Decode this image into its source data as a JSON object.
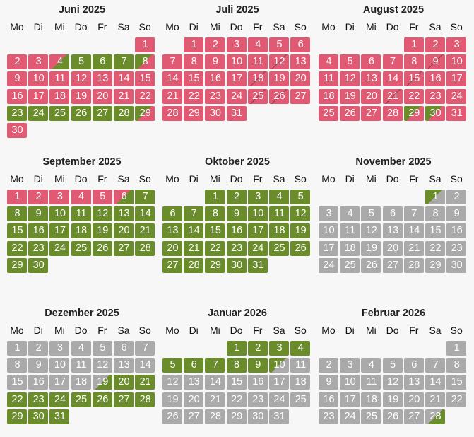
{
  "weekdays": [
    "Mo",
    "Di",
    "Mi",
    "Do",
    "Fr",
    "Sa",
    "So"
  ],
  "months": [
    {
      "title": "Juni 2025",
      "offset": 6,
      "status": [
        "r",
        "r",
        "r",
        "rg",
        "g",
        "g",
        "g",
        "gr",
        "r",
        "r",
        "r",
        "r",
        "r",
        "r",
        "r",
        "r",
        "r",
        "r",
        "r",
        "r",
        "r",
        "r",
        "g",
        "g",
        "g",
        "g",
        "g",
        "g",
        "gr",
        "r"
      ]
    },
    {
      "title": "Juli 2025",
      "offset": 1,
      "status": [
        "r",
        "r",
        "r",
        "r",
        "r",
        "r",
        "r",
        "r",
        "r",
        "r",
        "r",
        "rr",
        "r",
        "r",
        "r",
        "r",
        "r",
        "rr",
        "r",
        "r",
        "r",
        "r",
        "r",
        "r",
        "rr",
        "rr",
        "r",
        "r",
        "r",
        "r",
        "r"
      ]
    },
    {
      "title": "August 2025",
      "offset": 4,
      "status": [
        "r",
        "r",
        "r",
        "r",
        "r",
        "r",
        "r",
        "r",
        "rr",
        "r",
        "r",
        "r",
        "r",
        "r",
        "rr",
        "r",
        "r",
        "r",
        "r",
        "r",
        "rr",
        "r",
        "r",
        "r",
        "r",
        "r",
        "r",
        "r",
        "gr",
        "gr",
        "r"
      ]
    },
    {
      "title": "September 2025",
      "offset": 0,
      "status": [
        "r",
        "r",
        "r",
        "r",
        "r",
        "rg",
        "g",
        "g",
        "g",
        "g",
        "g",
        "g",
        "g",
        "g",
        "g",
        "g",
        "g",
        "g",
        "g",
        "g",
        "g",
        "g",
        "g",
        "g",
        "g",
        "g",
        "g",
        "g",
        "g",
        "g"
      ]
    },
    {
      "title": "Oktober 2025",
      "offset": 2,
      "status": [
        "g",
        "g",
        "g",
        "g",
        "g",
        "g",
        "g",
        "g",
        "g",
        "g",
        "g",
        "g",
        "g",
        "g",
        "g",
        "g",
        "g",
        "g",
        "g",
        "g",
        "g",
        "g",
        "g",
        "g",
        "g",
        "g",
        "g",
        "g",
        "g",
        "g",
        "g"
      ]
    },
    {
      "title": "November 2025",
      "offset": 5,
      "status": [
        "ggr",
        "x",
        "x",
        "x",
        "x",
        "x",
        "x",
        "x",
        "x",
        "x",
        "x",
        "x",
        "x",
        "x",
        "x",
        "x",
        "x",
        "x",
        "x",
        "x",
        "x",
        "x",
        "x",
        "x",
        "x",
        "x",
        "x",
        "x",
        "x",
        "x"
      ]
    },
    {
      "title": "Dezember 2025",
      "offset": 0,
      "status": [
        "x",
        "x",
        "x",
        "x",
        "x",
        "x",
        "x",
        "x",
        "x",
        "x",
        "x",
        "x",
        "x",
        "x",
        "x",
        "x",
        "x",
        "x",
        "grg",
        "g",
        "g",
        "g",
        "g",
        "g",
        "g",
        "g",
        "g",
        "g",
        "g",
        "g",
        "g"
      ]
    },
    {
      "title": "Januar 2026",
      "offset": 3,
      "status": [
        "g",
        "g",
        "g",
        "g",
        "g",
        "g",
        "g",
        "g",
        "g",
        "ggr",
        "x",
        "x",
        "x",
        "x",
        "x",
        "x",
        "x",
        "x",
        "x",
        "x",
        "x",
        "x",
        "x",
        "x",
        "x",
        "x",
        "x",
        "x",
        "x",
        "x",
        "x"
      ]
    },
    {
      "title": "Februar 2026",
      "offset": 6,
      "status": [
        "x",
        "x",
        "x",
        "x",
        "x",
        "x",
        "x",
        "x",
        "x",
        "x",
        "x",
        "x",
        "x",
        "x",
        "x",
        "x",
        "x",
        "x",
        "x",
        "x",
        "x",
        "x",
        "x",
        "x",
        "x",
        "x",
        "x",
        "grg"
      ]
    }
  ],
  "legend_colors": {
    "booked": "#e15a73",
    "available": "#6b8c2b",
    "unavailable": "#aaaaaa"
  }
}
